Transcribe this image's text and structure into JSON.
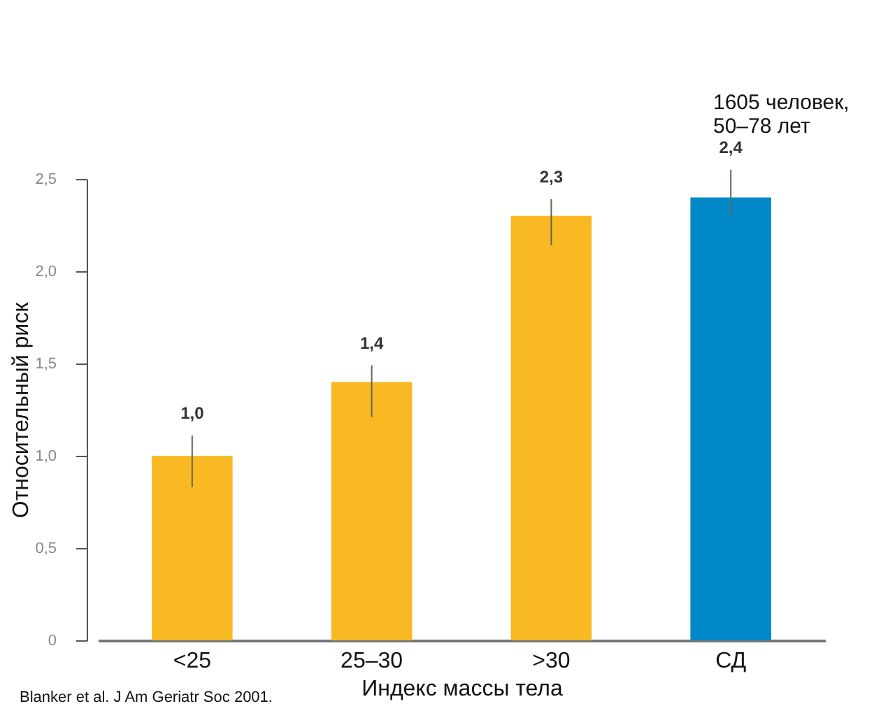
{
  "chart_data": {
    "type": "bar",
    "xlabel": "Индекс массы тела",
    "ylabel": "Относительный риск",
    "categories": [
      "<25",
      "25–30",
      ">30",
      "СД"
    ],
    "values": [
      1.0,
      1.4,
      2.3,
      2.4
    ],
    "colors": [
      "#f9b923",
      "#f9b923",
      "#f9b923",
      "#0088c8"
    ],
    "errors": [
      [
        0.83,
        1.11
      ],
      [
        1.21,
        1.49
      ],
      [
        2.14,
        2.39
      ],
      [
        2.3,
        2.55
      ]
    ],
    "value_labels": [
      "1,0",
      "1,4",
      "2,3",
      "2,4"
    ],
    "ylim": [
      0,
      2.5
    ],
    "yticks": [
      {
        "value": 0,
        "label": "0"
      },
      {
        "value": 0.5,
        "label": "0,5"
      },
      {
        "value": 1,
        "label": "1,0"
      },
      {
        "value": 1.5,
        "label": "1,5"
      },
      {
        "value": 2,
        "label": "2,0"
      },
      {
        "value": 2.5,
        "label": "2,5"
      }
    ],
    "annotations": [
      "1605 человек,\n50–78 лет",
      "Blanker et al. J Am Geriatr Soc 2001."
    ]
  }
}
